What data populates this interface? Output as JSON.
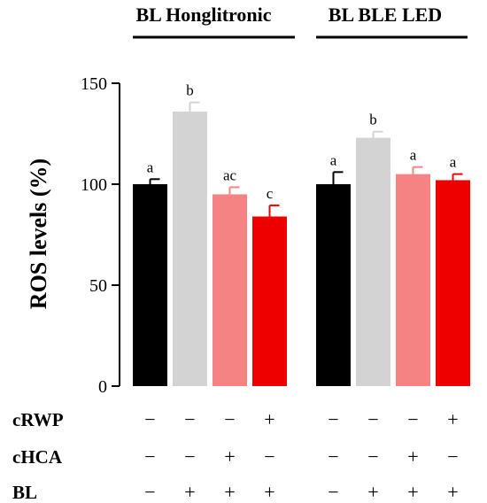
{
  "chart_data": {
    "type": "bar",
    "ylabel": "ROS levels (%)",
    "ylim": [
      0,
      150
    ],
    "yticks": [
      "0",
      "50",
      "100",
      "150"
    ],
    "groups": [
      {
        "title": "BL Honglitronic",
        "bars": [
          {
            "value": 100,
            "error": 2.5,
            "color": "#000000",
            "label": "a"
          },
          {
            "value": 136,
            "error": 4.5,
            "color": "#d3d3d3",
            "label": "b"
          },
          {
            "value": 95,
            "error": 3.5,
            "color": "#f58383",
            "label": "ac"
          },
          {
            "value": 84,
            "error": 5.5,
            "color": "#ee0000",
            "label": "c"
          }
        ]
      },
      {
        "title": "BL BLE LED",
        "bars": [
          {
            "value": 100,
            "error": 6,
            "color": "#000000",
            "label": "a"
          },
          {
            "value": 123,
            "error": 3,
            "color": "#d3d3d3",
            "label": "b"
          },
          {
            "value": 105,
            "error": 3.5,
            "color": "#f58383",
            "label": "a"
          },
          {
            "value": 102,
            "error": 3,
            "color": "#ee0000",
            "label": "a"
          }
        ]
      }
    ],
    "treatments": [
      {
        "name": "cRWP",
        "signs": [
          "−",
          "−",
          "−",
          "+",
          "−",
          "−",
          "−",
          "+"
        ]
      },
      {
        "name": "cHCA",
        "signs": [
          "−",
          "−",
          "+",
          "−",
          "−",
          "−",
          "+",
          "−"
        ]
      },
      {
        "name": "BL",
        "signs": [
          "−",
          "+",
          "+",
          "+",
          "−",
          "+",
          "+",
          "+"
        ]
      }
    ]
  }
}
